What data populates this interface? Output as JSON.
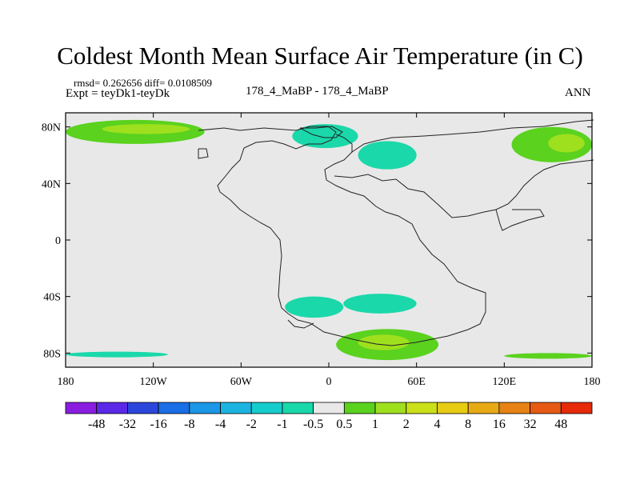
{
  "chart_data": {
    "type": "heatmap",
    "title": "Coldest Month Mean Surface Air Temperature (in C)",
    "stats_text": "rmsd= 0.262656 diff= 0.0108509",
    "experiment_label": "Expt = teyDk1-teyDk",
    "center_label": "178_4_MaBP - 178_4_MaBP",
    "season_label": "ANN",
    "xlabel": "",
    "ylabel": "",
    "x_range": [
      -180,
      180
    ],
    "y_range": [
      -90,
      90
    ],
    "x_ticks": [
      {
        "value": -180,
        "label": "180"
      },
      {
        "value": -120,
        "label": "120W"
      },
      {
        "value": -60,
        "label": "60W"
      },
      {
        "value": 0,
        "label": "0"
      },
      {
        "value": 60,
        "label": "60E"
      },
      {
        "value": 120,
        "label": "120E"
      },
      {
        "value": 180,
        "label": "180"
      }
    ],
    "y_ticks": [
      {
        "value": 80,
        "label": "80N"
      },
      {
        "value": 40,
        "label": "40N"
      },
      {
        "value": 0,
        "label": "0"
      },
      {
        "value": -40,
        "label": "40S"
      },
      {
        "value": -80,
        "label": "80S"
      }
    ],
    "background_value_range": [
      -0.5,
      0.5
    ],
    "background_color": "#e8e8e8",
    "colorbar": {
      "colors": [
        "#8a1ee0",
        "#5a28e6",
        "#2b46dc",
        "#1a6ee6",
        "#1c96e6",
        "#1bb4e0",
        "#16cccc",
        "#1ad8aa",
        "#e8e8e8",
        "#5ad21e",
        "#9ee01e",
        "#cce01a",
        "#e8cc14",
        "#e8aa14",
        "#e68214",
        "#e65a14",
        "#e62a0a"
      ],
      "labels": [
        "-48",
        "-32",
        "-16",
        "-8",
        "-4",
        "-2",
        "-1",
        "-0.5",
        "0.5",
        "1",
        "2",
        "4",
        "8",
        "16",
        "32",
        "48"
      ]
    },
    "anomaly_regions": [
      {
        "name": "arctic-northwest",
        "lon_range": [
          -180,
          -85
        ],
        "lat_range": [
          68,
          85
        ],
        "category_index": 9
      },
      {
        "name": "arctic-northwest-core",
        "lon_range": [
          -155,
          -95
        ],
        "lat_range": [
          75,
          82
        ],
        "category_index": 10
      },
      {
        "name": "arctic-north-atlantic",
        "lon_range": [
          -25,
          20
        ],
        "lat_range": [
          65,
          82
        ],
        "category_index": 7
      },
      {
        "name": "arctic-siberia",
        "lon_range": [
          20,
          60
        ],
        "lat_range": [
          50,
          70
        ],
        "category_index": 7
      },
      {
        "name": "arctic-northeast",
        "lon_range": [
          125,
          180
        ],
        "lat_range": [
          55,
          80
        ],
        "category_index": 9
      },
      {
        "name": "arctic-northeast-core",
        "lon_range": [
          150,
          175
        ],
        "lat_range": [
          62,
          75
        ],
        "category_index": 10
      },
      {
        "name": "southern-ocean-south-atlantic",
        "lon_range": [
          -30,
          10
        ],
        "lat_range": [
          -55,
          -40
        ],
        "category_index": 7
      },
      {
        "name": "southern-ocean-indian",
        "lon_range": [
          10,
          60
        ],
        "lat_range": [
          -52,
          -38
        ],
        "category_index": 7
      },
      {
        "name": "southern-ocean-weddell",
        "lon_range": [
          5,
          75
        ],
        "lat_range": [
          -85,
          -63
        ],
        "category_index": 9
      },
      {
        "name": "southern-ocean-weddell-core",
        "lon_range": [
          20,
          55
        ],
        "lat_range": [
          -78,
          -67
        ],
        "category_index": 10
      },
      {
        "name": "antarctic-coast",
        "lon_range": [
          -180,
          -110
        ],
        "lat_range": [
          -83,
          -79
        ],
        "category_index": 7
      },
      {
        "name": "antarctic-east",
        "lon_range": [
          120,
          180
        ],
        "lat_range": [
          -84,
          -80
        ],
        "category_index": 9
      }
    ]
  }
}
